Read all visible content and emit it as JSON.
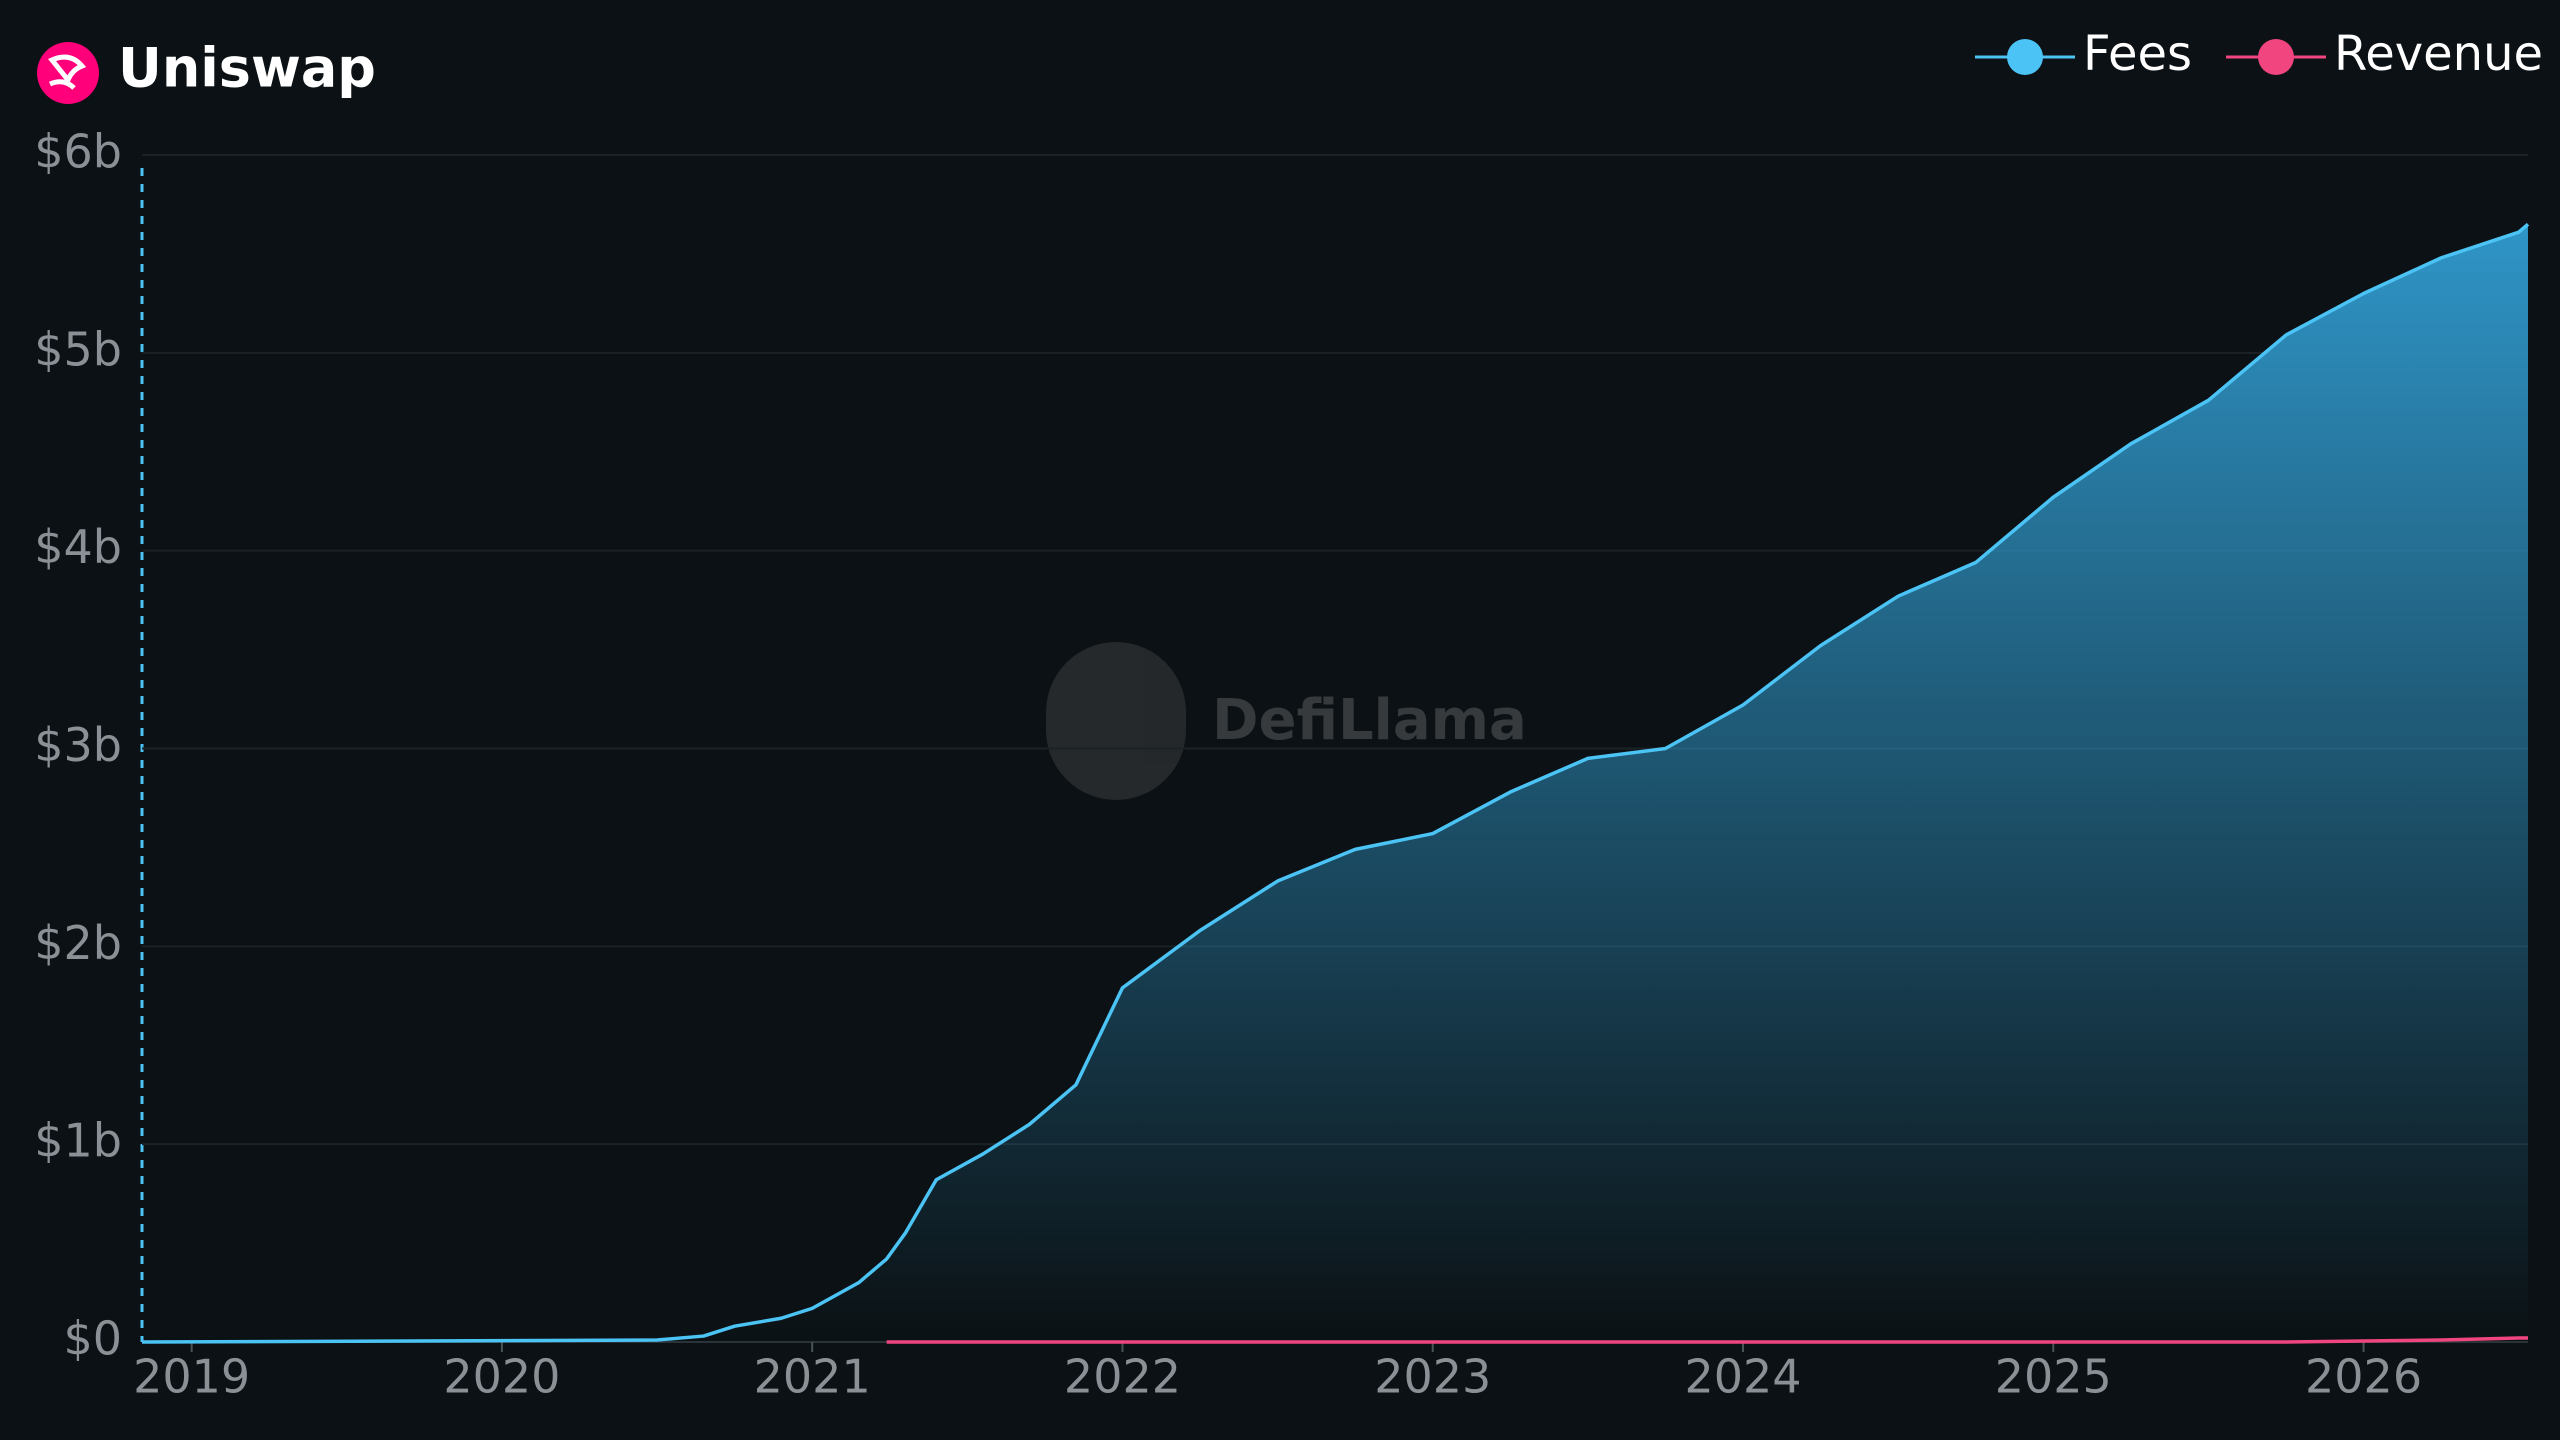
{
  "chart_data": {
    "type": "area",
    "title": "Uniswap",
    "watermark": "DefiLlama",
    "x": [
      2018.84,
      2020.5,
      2020.65,
      2020.75,
      2020.9,
      2021.0,
      2021.15,
      2021.24,
      2021.3,
      2021.4,
      2021.55,
      2021.7,
      2021.85,
      2022.0,
      2022.25,
      2022.5,
      2022.75,
      2023.0,
      2023.25,
      2023.5,
      2023.75,
      2024.0,
      2024.25,
      2024.5,
      2024.75,
      2025.0,
      2025.25,
      2025.5,
      2025.75,
      2026.0,
      2026.25,
      2026.5,
      2026.53
    ],
    "series": [
      {
        "name": "Fees",
        "color": "#4cc3f5",
        "values": [
          0,
          0.01,
          0.03,
          0.08,
          0.12,
          0.17,
          0.3,
          0.42,
          0.55,
          0.82,
          0.95,
          1.1,
          1.3,
          1.79,
          2.08,
          2.33,
          2.49,
          2.57,
          2.78,
          2.95,
          3.0,
          3.22,
          3.52,
          3.77,
          3.94,
          4.27,
          4.54,
          4.76,
          5.09,
          5.3,
          5.48,
          5.61,
          5.65
        ]
      },
      {
        "name": "Revenue",
        "color": "#f0457e",
        "values": [
          null,
          null,
          null,
          null,
          null,
          null,
          null,
          0,
          0,
          0,
          0,
          0,
          0,
          0,
          0,
          0,
          0,
          0,
          0,
          0,
          0,
          0,
          0,
          0,
          0,
          0,
          0,
          0,
          0,
          0.005,
          0.01,
          0.02,
          0.02
        ]
      }
    ],
    "xlim": [
      2018.84,
      2026.53
    ],
    "xticks": [
      2019,
      2020,
      2021,
      2022,
      2023,
      2024,
      2025,
      2026
    ],
    "ylim": [
      0,
      6
    ],
    "yticks": [
      {
        "value": 0,
        "label": "$0"
      },
      {
        "value": 1,
        "label": "$1b"
      },
      {
        "value": 2,
        "label": "$2b"
      },
      {
        "value": 3,
        "label": "$3b"
      },
      {
        "value": 4,
        "label": "$4b"
      },
      {
        "value": 5,
        "label": "$5b"
      },
      {
        "value": 6,
        "label": "$6b"
      }
    ],
    "grid": true
  }
}
